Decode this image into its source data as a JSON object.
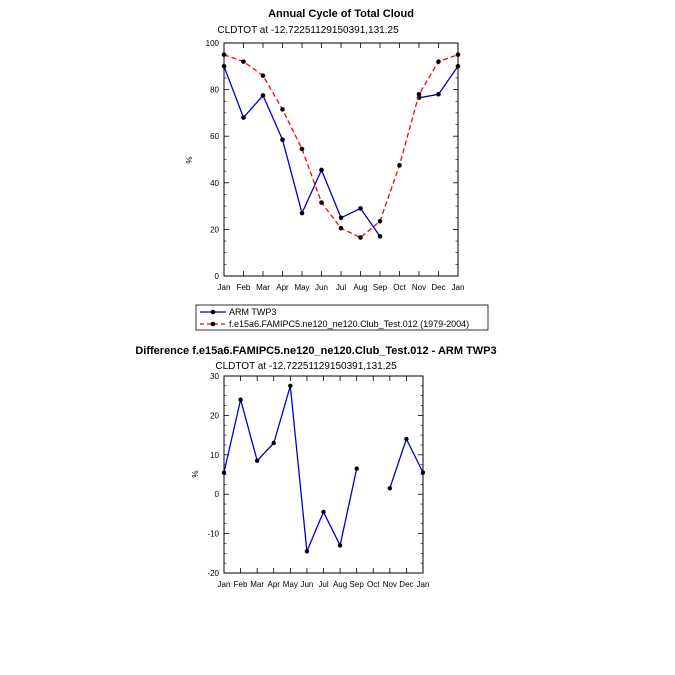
{
  "chart_data": [
    {
      "type": "line",
      "title": "Annual Cycle of Total Cloud",
      "subtitle": "CLDTOT at -12.72251129150391,131.25",
      "ylabel": "%",
      "xlabel": "",
      "ylim": [
        0,
        100
      ],
      "yticks": [
        0,
        20,
        40,
        60,
        80,
        100
      ],
      "categories": [
        "Jan",
        "Feb",
        "Mar",
        "Apr",
        "May",
        "Jun",
        "Jul",
        "Aug",
        "Sep",
        "Oct",
        "Nov",
        "Dec",
        "Jan"
      ],
      "series": [
        {
          "name": "ARM TWP3",
          "color": "#0000cc",
          "style": "solid",
          "values": [
            90,
            68,
            77.5,
            58.5,
            27,
            45.5,
            25,
            29,
            17,
            null,
            76.5,
            78,
            90
          ]
        },
        {
          "name": "f.e15a6.FAMIPC5.ne120_ne120.Club_Test.012 (1979-2004)",
          "color": "#ff0000",
          "style": "dashed",
          "values": [
            95,
            92,
            86,
            71.5,
            54.5,
            31.5,
            20.5,
            16.5,
            23.5,
            47.5,
            78,
            92,
            95
          ]
        }
      ],
      "legend": [
        "ARM TWP3",
        "f.e15a6.FAMIPC5.ne120_ne120.Club_Test.012 (1979-2004)"
      ]
    },
    {
      "type": "line",
      "title": "Difference f.e15a6.FAMIPC5.ne120_ne120.Club_Test.012 - ARM TWP3",
      "subtitle": "CLDTOT at -12.72251129150391,131.25",
      "ylabel": "%",
      "xlabel": "",
      "ylim": [
        -20,
        30
      ],
      "yticks": [
        -20,
        -10,
        0,
        10,
        20,
        30
      ],
      "categories": [
        "Jan",
        "Feb",
        "Mar",
        "Apr",
        "May",
        "Jun",
        "Jul",
        "Aug",
        "Sep",
        "Oct",
        "Nov",
        "Dec",
        "Jan"
      ],
      "series": [
        {
          "name": "Difference",
          "color": "#0000cc",
          "style": "solid",
          "values": [
            5.5,
            24,
            8.5,
            13,
            27.5,
            -14.5,
            -4.5,
            -13,
            6.5,
            null,
            1.5,
            14,
            5.5
          ]
        }
      ]
    }
  ]
}
